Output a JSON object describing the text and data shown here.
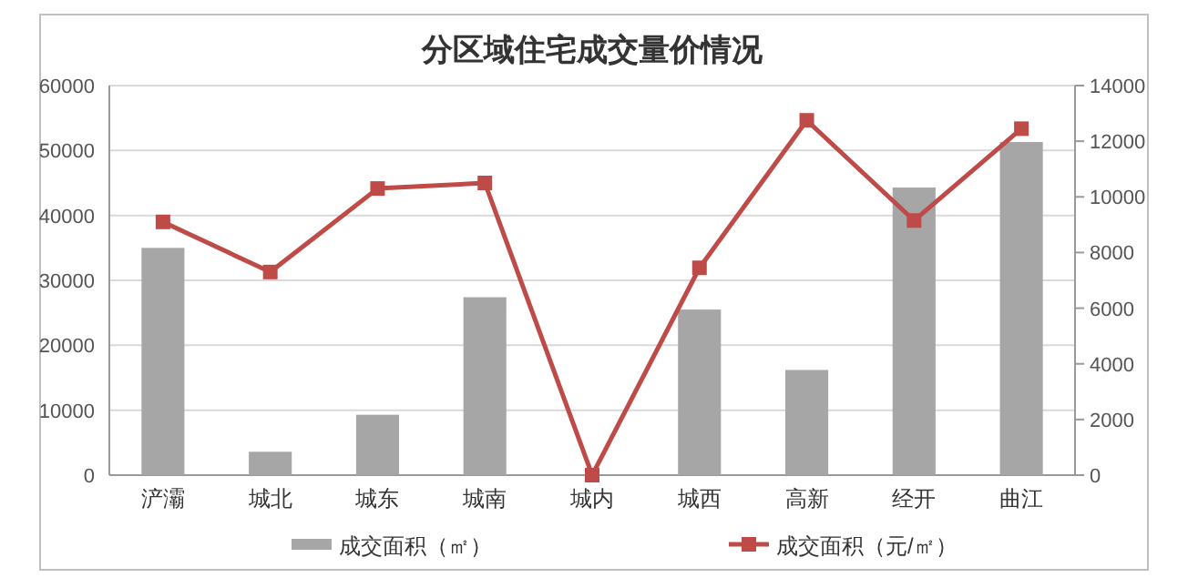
{
  "chart_data": {
    "type": "bar",
    "title": "分区域住宅成交量价情况",
    "categories": [
      "浐灞",
      "城北",
      "城东",
      "城南",
      "城内",
      "城西",
      "高新",
      "经开",
      "曲江"
    ],
    "series": [
      {
        "name": "成交面积（㎡）",
        "color": "#a6a6a6",
        "values": [
          35000,
          3600,
          9300,
          27400,
          0,
          25500,
          16200,
          44300,
          51300
        ]
      },
      {
        "name": "成交面积（元/㎡）",
        "type": "line",
        "axis": "y2",
        "color": "#be4b48",
        "marker": "square",
        "values": [
          9100,
          7300,
          10300,
          10500,
          0,
          7450,
          12750,
          9150,
          12450
        ]
      }
    ],
    "ylim": [
      0,
      60000
    ],
    "yticks": [
      0,
      10000,
      20000,
      30000,
      40000,
      50000,
      60000
    ],
    "y2lim": [
      0,
      14000
    ],
    "y2ticks": [
      0,
      2000,
      4000,
      6000,
      8000,
      10000,
      12000,
      14000
    ],
    "grid": "y",
    "legend": "bottom"
  }
}
